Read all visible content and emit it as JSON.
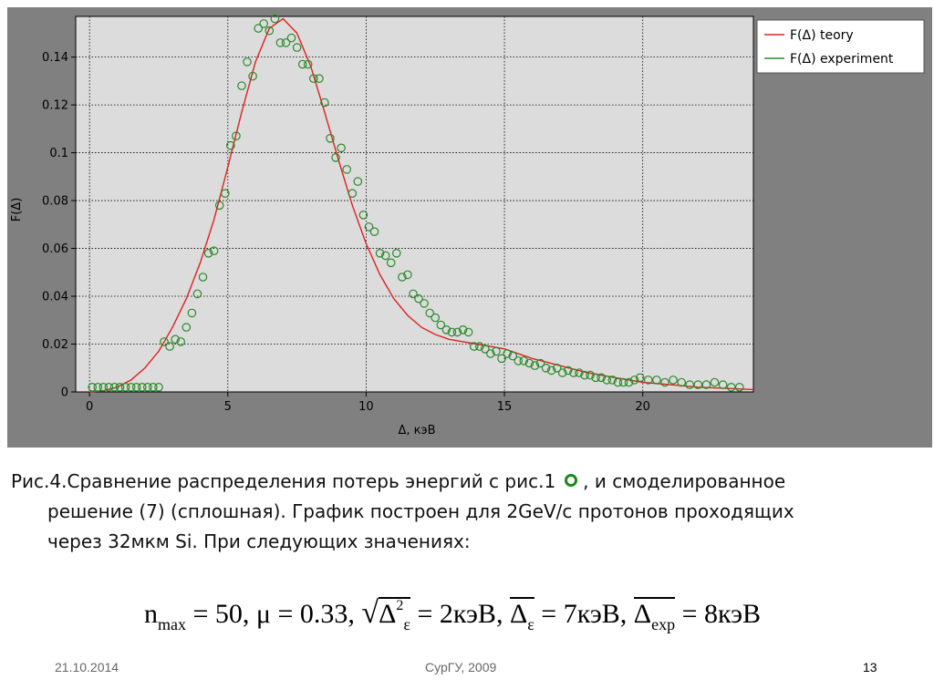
{
  "chart_data": {
    "type": "line",
    "title": "",
    "xlabel": "Δ, кэВ",
    "ylabel": "F(Δ)",
    "xlim": [
      -0.5,
      24
    ],
    "ylim": [
      0,
      0.157
    ],
    "grid": true,
    "legend_position": "outside-right-top",
    "x_ticks": [
      "0",
      "5",
      "10",
      "15",
      "20"
    ],
    "y_ticks": [
      "0",
      "0.02",
      "0.04",
      "0.06",
      "0.08",
      "0.1",
      "0.12",
      "0.14"
    ],
    "series": [
      {
        "name": "F(Δ) teory",
        "style": "line",
        "color": "#e02020",
        "x": [
          0,
          0.5,
          1,
          1.5,
          2,
          2.5,
          3,
          3.5,
          4,
          4.5,
          5,
          5.5,
          6,
          6.5,
          7,
          7.5,
          8,
          8.5,
          9,
          9.5,
          10,
          10.5,
          11,
          11.5,
          12,
          12.5,
          13,
          13.5,
          14,
          15,
          16,
          17,
          18,
          19,
          20,
          21,
          22,
          23,
          24
        ],
        "y": [
          0,
          0.0005,
          0.002,
          0.005,
          0.01,
          0.017,
          0.027,
          0.039,
          0.054,
          0.072,
          0.094,
          0.117,
          0.138,
          0.152,
          0.156,
          0.15,
          0.136,
          0.117,
          0.097,
          0.078,
          0.062,
          0.049,
          0.039,
          0.032,
          0.027,
          0.024,
          0.022,
          0.021,
          0.02,
          0.018,
          0.014,
          0.011,
          0.008,
          0.006,
          0.004,
          0.003,
          0.002,
          0.0015,
          0.001
        ]
      },
      {
        "name": "F(Δ) experiment",
        "style": "scatter",
        "color": "#2a8a2a",
        "x": [
          0.1,
          0.3,
          0.5,
          0.7,
          0.9,
          1.1,
          1.3,
          1.5,
          1.7,
          1.9,
          2.1,
          2.3,
          2.5,
          2.7,
          2.9,
          3.1,
          3.3,
          3.5,
          3.7,
          3.9,
          4.1,
          4.3,
          4.5,
          4.7,
          4.9,
          5.1,
          5.3,
          5.5,
          5.7,
          5.9,
          6.1,
          6.3,
          6.5,
          6.7,
          6.9,
          7.1,
          7.3,
          7.5,
          7.7,
          7.9,
          8.1,
          8.3,
          8.5,
          8.7,
          8.9,
          9.1,
          9.3,
          9.5,
          9.7,
          9.9,
          10.1,
          10.3,
          10.5,
          10.7,
          10.9,
          11.1,
          11.3,
          11.5,
          11.7,
          11.9,
          12.1,
          12.3,
          12.5,
          12.7,
          12.9,
          13.1,
          13.3,
          13.5,
          13.7,
          13.9,
          14.1,
          14.3,
          14.5,
          14.7,
          14.9,
          15.1,
          15.3,
          15.5,
          15.7,
          15.9,
          16.1,
          16.3,
          16.5,
          16.7,
          16.9,
          17.1,
          17.3,
          17.5,
          17.7,
          17.9,
          18.1,
          18.3,
          18.5,
          18.7,
          18.9,
          19.1,
          19.3,
          19.5,
          19.7,
          19.9,
          20.2,
          20.5,
          20.8,
          21.1,
          21.4,
          21.7,
          22.0,
          22.3,
          22.6,
          22.9,
          23.2,
          23.5
        ],
        "y": [
          0.002,
          0.002,
          0.002,
          0.002,
          0.002,
          0.002,
          0.002,
          0.002,
          0.002,
          0.002,
          0.002,
          0.002,
          0.002,
          0.021,
          0.019,
          0.022,
          0.021,
          0.027,
          0.033,
          0.041,
          0.048,
          0.058,
          0.059,
          0.078,
          0.083,
          0.103,
          0.107,
          0.128,
          0.138,
          0.132,
          0.152,
          0.154,
          0.151,
          0.156,
          0.146,
          0.146,
          0.148,
          0.144,
          0.137,
          0.137,
          0.131,
          0.131,
          0.121,
          0.106,
          0.098,
          0.102,
          0.093,
          0.083,
          0.088,
          0.074,
          0.069,
          0.067,
          0.058,
          0.057,
          0.054,
          0.058,
          0.048,
          0.049,
          0.041,
          0.039,
          0.037,
          0.033,
          0.031,
          0.028,
          0.026,
          0.025,
          0.025,
          0.026,
          0.025,
          0.019,
          0.019,
          0.018,
          0.016,
          0.017,
          0.014,
          0.016,
          0.015,
          0.013,
          0.013,
          0.012,
          0.011,
          0.012,
          0.01,
          0.009,
          0.01,
          0.008,
          0.009,
          0.008,
          0.008,
          0.007,
          0.007,
          0.006,
          0.006,
          0.005,
          0.005,
          0.004,
          0.004,
          0.004,
          0.005,
          0.006,
          0.005,
          0.005,
          0.004,
          0.005,
          0.004,
          0.003,
          0.003,
          0.003,
          0.004,
          0.003,
          0.002,
          0.002
        ]
      }
    ]
  },
  "caption": {
    "line1_before": "Рис.4.Сравнение распределения потерь энергий с рис.1",
    "line1_after": ", и смоделированное",
    "line2": "решение (7) (сплошная). График построен для 2GeV/c протонов проходящих",
    "line3": "через 32мкм Si. При следующих значениях:"
  },
  "formula": {
    "n": "n",
    "n_sub": "max",
    "eq1": " = 50, μ = 0.33, ",
    "sqrt": "√",
    "delta1": "Δ",
    "delta1_sup": "2",
    "delta1_sub": "ε",
    "eq2": " = 2кэВ, ",
    "delta2": "Δ",
    "delta2_sub": "ε",
    "eq3": " = 7кэВ, ",
    "delta3": "Δ",
    "delta3_sub": "exp",
    "eq4": " = 8кэВ"
  },
  "footer": {
    "date": "21.10.2014",
    "org": "СурГУ, 2009",
    "page": "13"
  },
  "colors": {
    "frame_bg": "#808080",
    "plot_bg": "#dcdcdc",
    "theory": "#e02020",
    "experiment": "#2a8a2a"
  }
}
